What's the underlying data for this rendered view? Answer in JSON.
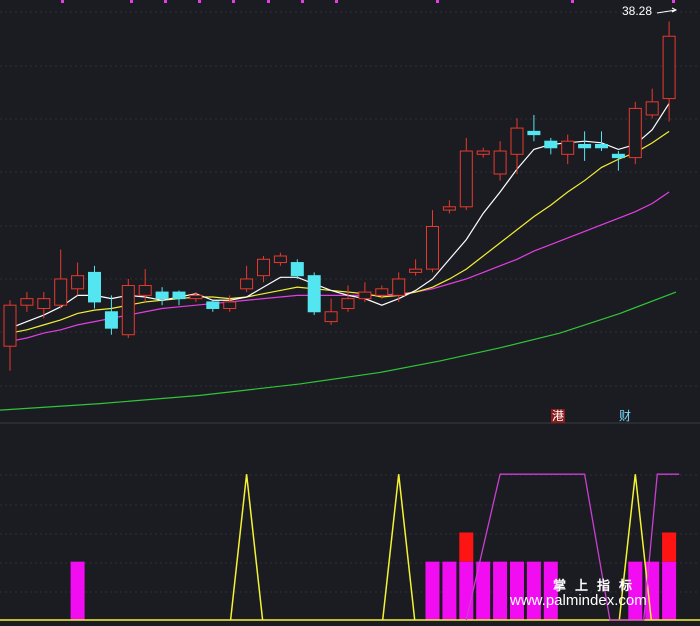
{
  "labels": {
    "last_price": "38.28",
    "tag_gang": "港",
    "tag_cai": "财",
    "watermark_title": "掌上指标",
    "watermark_url": "www.palmindex.com"
  },
  "colors": {
    "background": "#1b1c21",
    "grid": "#2f3038",
    "up": "#e8392e",
    "down": "#54e6f0",
    "ma5": "#ffffff",
    "ma10": "#f2ee36",
    "ma20": "#e23fe0",
    "ma60": "#2fc53a",
    "bar_magenta": "#f20cf2",
    "bar_red": "#ff1414",
    "yellow_line": "#f5f234",
    "magenta_line": "#c93fd0"
  },
  "chart_data": [
    {
      "type": "candlestick",
      "ylim": [
        14,
        39
      ],
      "candles": [
        [
          18.5,
          21.0,
          17.0,
          21.3
        ],
        [
          21.0,
          21.4,
          20.6,
          21.8
        ],
        [
          20.8,
          21.4,
          20.2,
          21.8
        ],
        [
          21.0,
          22.6,
          20.8,
          24.4
        ],
        [
          22.0,
          22.8,
          21.6,
          23.6
        ],
        [
          23.0,
          21.2,
          20.8,
          23.4
        ],
        [
          20.6,
          19.6,
          19.2,
          21.6
        ],
        [
          19.2,
          22.2,
          19.0,
          22.6
        ],
        [
          21.6,
          22.2,
          21.2,
          23.2
        ],
        [
          21.8,
          21.4,
          21.0,
          22.1
        ],
        [
          21.8,
          21.4,
          21.0,
          21.9
        ],
        [
          21.4,
          21.6,
          21.2,
          21.8
        ],
        [
          21.2,
          20.8,
          20.6,
          21.3
        ],
        [
          20.8,
          21.2,
          20.6,
          21.6
        ],
        [
          22.0,
          22.6,
          21.8,
          23.4
        ],
        [
          22.8,
          23.8,
          22.4,
          24.0
        ],
        [
          23.6,
          24.0,
          23.4,
          24.2
        ],
        [
          23.6,
          22.8,
          22.6,
          23.8
        ],
        [
          22.8,
          20.6,
          20.4,
          23.0
        ],
        [
          20.0,
          20.6,
          19.8,
          21.4
        ],
        [
          20.8,
          21.4,
          20.6,
          22.2
        ],
        [
          21.4,
          21.8,
          21.2,
          22.4
        ],
        [
          21.6,
          22.0,
          21.4,
          22.2
        ],
        [
          21.6,
          22.6,
          21.2,
          23.0
        ],
        [
          23.0,
          23.2,
          22.8,
          23.8
        ],
        [
          23.2,
          25.8,
          23.0,
          26.8
        ],
        [
          26.8,
          27.0,
          26.6,
          27.4
        ],
        [
          27.0,
          30.4,
          26.8,
          31.2
        ],
        [
          30.2,
          30.4,
          30.0,
          30.6
        ],
        [
          29.0,
          30.4,
          28.6,
          31.0
        ],
        [
          30.2,
          31.8,
          29.0,
          32.4
        ],
        [
          31.6,
          31.4,
          31.0,
          32.6
        ],
        [
          31.0,
          30.6,
          30.2,
          31.2
        ],
        [
          30.2,
          31.0,
          29.6,
          31.4
        ],
        [
          30.8,
          30.6,
          29.8,
          31.6
        ],
        [
          30.8,
          30.6,
          30.4,
          31.6
        ],
        [
          30.2,
          30.0,
          29.2,
          30.4
        ],
        [
          30.0,
          33.0,
          29.6,
          33.4
        ],
        [
          32.6,
          33.4,
          32.4,
          34.2
        ],
        [
          33.6,
          37.4,
          32.2,
          38.3
        ]
      ],
      "ma5": [
        19.6,
        20.0,
        20.4,
        20.9,
        21.6,
        21.6,
        21.4,
        21.6,
        21.5,
        21.3,
        21.5,
        21.7,
        21.3,
        21.3,
        21.5,
        22.1,
        22.7,
        22.7,
        22.3,
        21.9,
        21.6,
        21.4,
        21.0,
        21.4,
        21.9,
        22.6,
        23.8,
        25.0,
        26.6,
        27.9,
        29.3,
        30.5,
        30.8,
        30.9,
        31.0,
        30.9,
        30.5,
        30.8,
        31.7,
        33.3
      ],
      "ma10": [
        19.3,
        19.5,
        19.8,
        20.1,
        20.5,
        20.7,
        20.8,
        21.0,
        21.2,
        21.3,
        21.4,
        21.5,
        21.5,
        21.4,
        21.5,
        21.7,
        21.9,
        22.1,
        22.0,
        21.9,
        21.8,
        21.7,
        21.5,
        21.6,
        21.8,
        22.1,
        22.6,
        23.2,
        24.0,
        24.8,
        25.6,
        26.4,
        27.1,
        27.9,
        28.6,
        29.4,
        29.9,
        30.3,
        30.9,
        31.6
      ],
      "ma20": [
        18.8,
        19.0,
        19.3,
        19.5,
        19.8,
        20.0,
        20.2,
        20.4,
        20.6,
        20.8,
        20.9,
        21.0,
        21.1,
        21.2,
        21.3,
        21.4,
        21.5,
        21.6,
        21.6,
        21.6,
        21.6,
        21.6,
        21.6,
        21.7,
        21.8,
        22.0,
        22.3,
        22.6,
        23.0,
        23.4,
        23.8,
        24.3,
        24.7,
        25.1,
        25.5,
        25.9,
        26.3,
        26.7,
        27.2,
        27.9
      ],
      "ma60": [
        [
          0,
          14.6
        ],
        [
          100,
          15.0
        ],
        [
          200,
          15.5
        ],
        [
          300,
          16.2
        ],
        [
          380,
          16.9
        ],
        [
          440,
          17.6
        ],
        [
          500,
          18.4
        ],
        [
          560,
          19.3
        ],
        [
          620,
          20.5
        ],
        [
          676,
          21.8
        ]
      ]
    },
    {
      "type": "bar",
      "ylim": [
        0,
        6
      ],
      "magenta_bars": [
        0,
        0,
        0,
        0,
        2,
        0,
        0,
        0,
        0,
        0,
        0,
        0,
        0,
        0,
        0,
        0,
        0,
        0,
        0,
        0,
        0,
        0,
        0,
        0,
        0,
        2,
        2,
        2,
        2,
        2,
        2,
        2,
        2,
        0,
        0,
        0,
        0,
        2,
        2,
        2
      ],
      "red_bars": [
        0,
        0,
        0,
        0,
        0,
        0,
        0,
        0,
        0,
        0,
        0,
        0,
        0,
        0,
        0,
        0,
        0,
        0,
        0,
        0,
        0,
        0,
        0,
        0,
        0,
        0,
        0,
        3,
        0,
        0,
        0,
        0,
        0,
        0,
        0,
        0,
        0,
        0,
        0,
        3
      ],
      "yellow_spikes": [
        14,
        23,
        37
      ],
      "magenta_line_high": [
        [
          29,
          5
        ],
        [
          34,
          5
        ],
        [
          38,
          5
        ]
      ]
    }
  ]
}
